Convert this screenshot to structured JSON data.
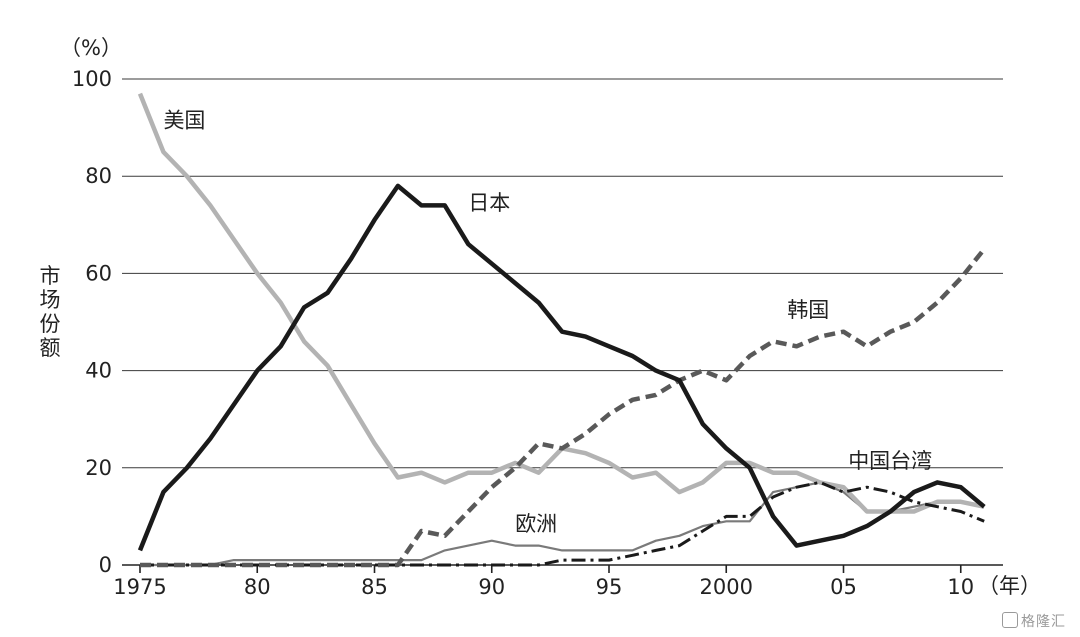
{
  "chart_data": {
    "type": "line",
    "y_unit": "（%）",
    "x_unit": "（年）",
    "ylabel": "市场份额",
    "ylim": [
      0,
      100
    ],
    "yticks": [
      0,
      20,
      40,
      60,
      80,
      100
    ],
    "xlim": [
      1975,
      2011
    ],
    "xticks": [
      {
        "value": 1975,
        "label": "1975"
      },
      {
        "value": 1980,
        "label": "80"
      },
      {
        "value": 1985,
        "label": "85"
      },
      {
        "value": 1990,
        "label": "90"
      },
      {
        "value": 1995,
        "label": "95"
      },
      {
        "value": 2000,
        "label": "2000"
      },
      {
        "value": 2005,
        "label": "05"
      },
      {
        "value": 2010,
        "label": "10"
      }
    ],
    "grid": true,
    "series": [
      {
        "name": "美国",
        "color": "#b3b3b3",
        "style": "solid",
        "x": [
          1975,
          1976,
          1977,
          1978,
          1979,
          1980,
          1981,
          1982,
          1983,
          1984,
          1985,
          1986,
          1987,
          1988,
          1989,
          1990,
          1991,
          1992,
          1993,
          1994,
          1995,
          1996,
          1997,
          1998,
          1999,
          2000,
          2001,
          2002,
          2003,
          2004,
          2005,
          2006,
          2007,
          2008,
          2009,
          2010,
          2011
        ],
        "y": [
          97,
          85,
          80,
          74,
          67,
          60,
          54,
          46,
          41,
          33,
          25,
          18,
          19,
          17,
          19,
          19,
          21,
          19,
          24,
          23,
          21,
          18,
          19,
          15,
          17,
          21,
          21,
          19,
          19,
          17,
          16,
          11,
          11,
          11,
          13,
          13,
          12
        ]
      },
      {
        "name": "日本",
        "color": "#1a1a1a",
        "style": "solid",
        "x": [
          1975,
          1976,
          1977,
          1978,
          1979,
          1980,
          1981,
          1982,
          1983,
          1984,
          1985,
          1986,
          1987,
          1988,
          1989,
          1990,
          1991,
          1992,
          1993,
          1994,
          1995,
          1996,
          1997,
          1998,
          1999,
          2000,
          2001,
          2002,
          2003,
          2004,
          2005,
          2006,
          2007,
          2008,
          2009,
          2010,
          2011
        ],
        "y": [
          3,
          15,
          20,
          26,
          33,
          40,
          45,
          53,
          56,
          63,
          71,
          78,
          74,
          74,
          66,
          62,
          58,
          54,
          48,
          47,
          45,
          43,
          40,
          38,
          29,
          24,
          20,
          10,
          4,
          5,
          6,
          8,
          11,
          15,
          17,
          16,
          12
        ]
      },
      {
        "name": "韩国",
        "color": "#595959",
        "style": "dashed",
        "x": [
          1975,
          1976,
          1977,
          1978,
          1979,
          1980,
          1981,
          1982,
          1983,
          1984,
          1985,
          1986,
          1987,
          1988,
          1989,
          1990,
          1991,
          1992,
          1993,
          1994,
          1995,
          1996,
          1997,
          1998,
          1999,
          2000,
          2001,
          2002,
          2003,
          2004,
          2005,
          2006,
          2007,
          2008,
          2009,
          2010,
          2011
        ],
        "y": [
          0,
          0,
          0,
          0,
          0,
          0,
          0,
          0,
          0,
          0,
          0,
          0,
          7,
          6,
          11,
          16,
          20,
          25,
          24,
          27,
          31,
          34,
          35,
          38,
          40,
          38,
          43,
          46,
          45,
          47,
          48,
          45,
          48,
          50,
          54,
          59,
          65
        ]
      },
      {
        "name": "中国台湾",
        "color": "#1a1a1a",
        "style": "dashdot",
        "x": [
          1975,
          1976,
          1977,
          1978,
          1979,
          1980,
          1981,
          1982,
          1983,
          1984,
          1985,
          1986,
          1987,
          1988,
          1989,
          1990,
          1991,
          1992,
          1993,
          1994,
          1995,
          1996,
          1997,
          1998,
          1999,
          2000,
          2001,
          2002,
          2003,
          2004,
          2005,
          2006,
          2007,
          2008,
          2009,
          2010,
          2011
        ],
        "y": [
          0,
          0,
          0,
          0,
          0,
          0,
          0,
          0,
          0,
          0,
          0,
          0,
          0,
          0,
          0,
          0,
          0,
          0,
          1,
          1,
          1,
          2,
          3,
          4,
          7,
          10,
          10,
          14,
          16,
          17,
          15,
          16,
          15,
          13,
          12,
          11,
          9
        ]
      },
      {
        "name": "欧洲",
        "color": "#7a7a7a",
        "style": "thin",
        "x": [
          1975,
          1976,
          1977,
          1978,
          1979,
          1980,
          1981,
          1982,
          1983,
          1984,
          1985,
          1986,
          1987,
          1988,
          1989,
          1990,
          1991,
          1992,
          1993,
          1994,
          1995,
          1996,
          1997,
          1998,
          1999,
          2000,
          2001,
          2002,
          2003,
          2004,
          2005,
          2006,
          2007,
          2008,
          2009,
          2010,
          2011
        ],
        "y": [
          0,
          0,
          0,
          0,
          1,
          1,
          1,
          1,
          1,
          1,
          1,
          1,
          1,
          3,
          4,
          5,
          4,
          4,
          3,
          3,
          3,
          3,
          5,
          6,
          8,
          9,
          9,
          15,
          16,
          17,
          15,
          11,
          11,
          12,
          13,
          13,
          12
        ]
      }
    ],
    "annotations": [
      {
        "text": "美国",
        "x": 1976.0,
        "y": 90
      },
      {
        "text": "日本",
        "x": 1989.0,
        "y": 73
      },
      {
        "text": "韩国",
        "x": 2002.6,
        "y": 51
      },
      {
        "text": "中国台湾",
        "x": 2005.2,
        "y": 20
      },
      {
        "text": "欧洲",
        "x": 1991.0,
        "y": 7
      }
    ]
  },
  "watermark": "格隆汇"
}
